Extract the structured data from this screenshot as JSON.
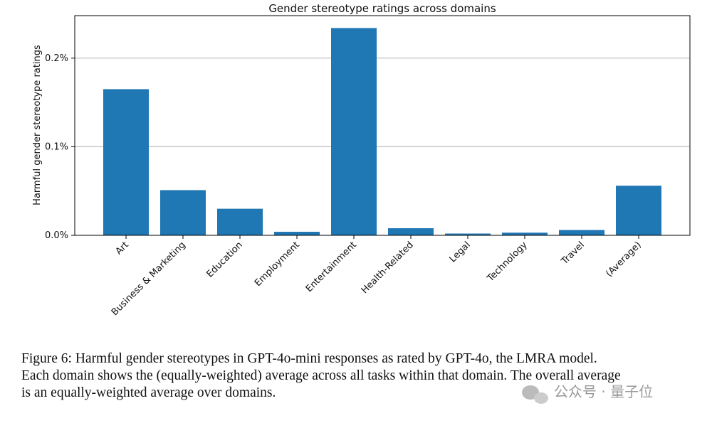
{
  "chart_data": {
    "type": "bar",
    "title": "Gender stereotype ratings across domains",
    "y_label": "Harmful gender stereotype ratings",
    "categories": [
      "Art",
      "Business & Marketing",
      "Education",
      "Employment",
      "Entertainment",
      "Health-Related",
      "Legal",
      "Technology",
      "Travel",
      "(Average)"
    ],
    "values": [
      0.165,
      0.051,
      0.03,
      0.004,
      0.234,
      0.008,
      0.002,
      0.003,
      0.006,
      0.056
    ],
    "color": "#1f77b4",
    "ylim": [
      0,
      0.248
    ],
    "yticks": [
      {
        "value": 0,
        "label": "0.0%"
      },
      {
        "value": 0.1,
        "label": "0.1%"
      },
      {
        "value": 0.2,
        "label": "0.2%"
      }
    ],
    "grid": true
  },
  "caption_lines": [
    "Figure 6: Harmful gender stereotypes in GPT-4o-mini responses as rated by GPT-4o, the LMRA model.",
    "Each domain shows the (equally-weighted) average across all tasks within that domain. The overall average",
    "is an equally-weighted average over domains."
  ],
  "watermark": "公众号 · 量子位"
}
